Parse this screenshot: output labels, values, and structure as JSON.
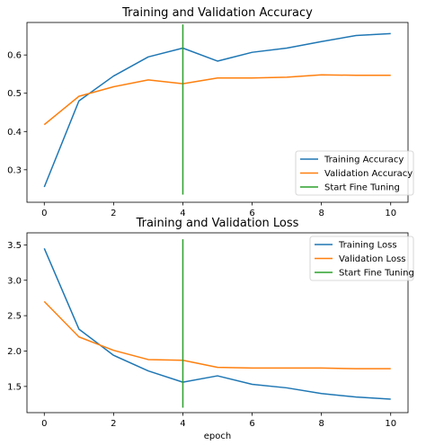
{
  "chart_data": [
    {
      "type": "line",
      "title": "Training and Validation Accuracy",
      "xlabel": "",
      "ylabel": "",
      "xlim": [
        -0.5,
        10.5
      ],
      "ylim": [
        0.215,
        0.685
      ],
      "x_ticks": [
        0,
        2,
        4,
        6,
        8,
        10
      ],
      "y_ticks": [
        0.3,
        0.4,
        0.5,
        0.6
      ],
      "y_tick_labels": [
        "0.3",
        "0.4",
        "0.5",
        "0.6"
      ],
      "grid": false,
      "legend_position": "lower-right",
      "x": [
        0,
        1,
        2,
        3,
        4,
        5,
        6,
        7,
        8,
        9,
        10
      ],
      "series": [
        {
          "name": "Training Accuracy",
          "color": "#1f77b4",
          "values": [
            0.255,
            0.48,
            0.545,
            0.595,
            0.618,
            0.584,
            0.607,
            0.618,
            0.635,
            0.651,
            0.656
          ]
        },
        {
          "name": "Validation Accuracy",
          "color": "#ff7f0e",
          "values": [
            0.418,
            0.492,
            0.517,
            0.535,
            0.525,
            0.54,
            0.54,
            0.542,
            0.548,
            0.547,
            0.547
          ]
        }
      ],
      "vline": {
        "name": "Start Fine Tuning",
        "color": "#2ca02c",
        "x": 4,
        "y_range": [
          0.235,
          0.68
        ]
      }
    },
    {
      "type": "line",
      "title": "Training and Validation Loss",
      "xlabel": "epoch",
      "ylabel": "",
      "xlim": [
        -0.5,
        10.5
      ],
      "ylim": [
        1.13,
        3.67
      ],
      "x_ticks": [
        0,
        2,
        4,
        6,
        8,
        10
      ],
      "y_ticks": [
        1.5,
        2.0,
        2.5,
        3.0,
        3.5
      ],
      "y_tick_labels": [
        "1.5",
        "2.0",
        "2.5",
        "3.0",
        "3.5"
      ],
      "grid": false,
      "legend_position": "top-right",
      "x": [
        0,
        1,
        2,
        3,
        4,
        5,
        6,
        7,
        8,
        9,
        10
      ],
      "series": [
        {
          "name": "Training Loss",
          "color": "#1f77b4",
          "values": [
            3.45,
            2.31,
            1.94,
            1.72,
            1.56,
            1.65,
            1.53,
            1.48,
            1.4,
            1.35,
            1.32
          ]
        },
        {
          "name": "Validation Loss",
          "color": "#ff7f0e",
          "values": [
            2.7,
            2.2,
            2.01,
            1.88,
            1.87,
            1.77,
            1.76,
            1.76,
            1.76,
            1.75,
            1.75
          ]
        }
      ],
      "vline": {
        "name": "Start Fine Tuning",
        "color": "#2ca02c",
        "x": 4,
        "y_range": [
          1.2,
          3.58
        ]
      }
    }
  ]
}
